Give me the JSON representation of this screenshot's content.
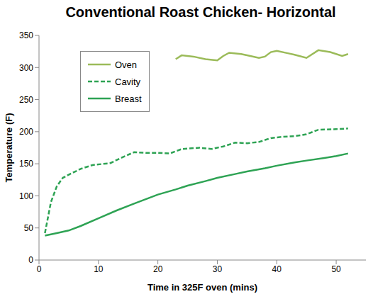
{
  "chart_data": {
    "type": "line",
    "title": "Conventional Roast Chicken- Horizontal",
    "x_label": "Time in 325F oven (mins)",
    "y_label": "Temperature (F)",
    "xlim": [
      0,
      55
    ],
    "xticks": [
      0,
      10,
      20,
      30,
      40,
      50
    ],
    "ylim": [
      0,
      350
    ],
    "yticks": [
      0,
      50,
      100,
      150,
      200,
      250,
      300,
      350
    ],
    "grid": false,
    "legend": "upper left",
    "series": [
      {
        "name": "Oven",
        "color": "#9bbb59",
        "line_style": "solid",
        "x": [
          23,
          24,
          26,
          28,
          30,
          31,
          32,
          34,
          35,
          37,
          38,
          39,
          40,
          42,
          43,
          45,
          47,
          49,
          51,
          52
        ],
        "values": [
          313,
          319,
          317,
          313,
          311,
          318,
          323,
          321,
          319,
          315,
          317,
          324,
          326,
          322,
          320,
          315,
          327,
          324,
          318,
          321
        ]
      },
      {
        "name": "Cavity",
        "color": "#2ea354",
        "line_style": "dashed",
        "x": [
          1,
          2,
          3,
          4,
          5,
          7,
          9,
          12,
          14,
          16,
          18,
          20,
          22,
          24,
          27,
          29,
          31,
          33,
          35,
          37,
          39,
          41,
          43,
          45,
          47,
          50,
          52
        ],
        "values": [
          42,
          90,
          115,
          128,
          133,
          142,
          148,
          151,
          160,
          168,
          167,
          167,
          166,
          173,
          175,
          173,
          177,
          183,
          182,
          184,
          190,
          192,
          193,
          196,
          203,
          204,
          205
        ]
      },
      {
        "name": "Breast",
        "color": "#2ea354",
        "line_style": "solid",
        "x": [
          1,
          3,
          5,
          7,
          10,
          13,
          16,
          20,
          23,
          25,
          28,
          30,
          33,
          35,
          38,
          40,
          43,
          45,
          48,
          50,
          52
        ],
        "values": [
          38,
          42,
          46,
          53,
          65,
          77,
          88,
          102,
          110,
          116,
          123,
          128,
          134,
          138,
          143,
          147,
          152,
          155,
          159,
          162,
          166
        ]
      }
    ]
  }
}
